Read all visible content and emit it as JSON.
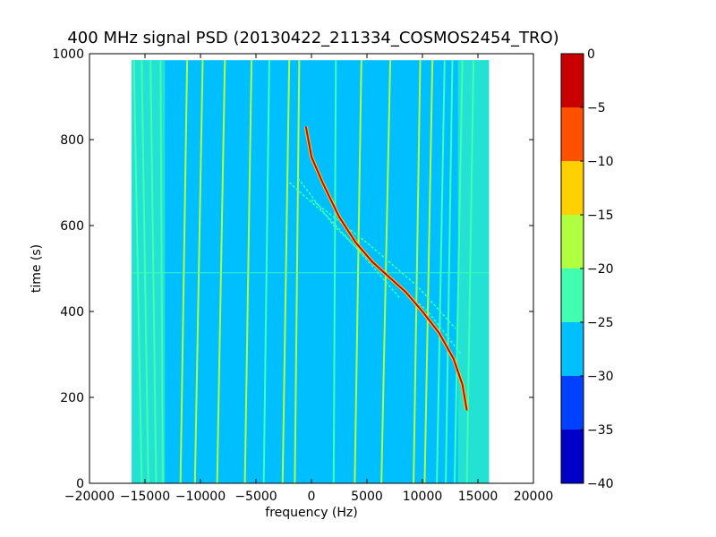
{
  "chart_data": {
    "type": "heatmap",
    "title": "400 MHz signal PSD (20130422_211334_COSMOS2454_TRO)",
    "xlabel": "frequency (Hz)",
    "ylabel": "time (s)",
    "xlim": [
      -20000,
      20000
    ],
    "ylim": [
      0,
      1000
    ],
    "xticks": [
      -20000,
      -15000,
      -10000,
      -5000,
      0,
      5000,
      10000,
      15000,
      20000
    ],
    "yticks": [
      0,
      200,
      400,
      600,
      800,
      1000
    ],
    "xtick_labels": [
      "−20000",
      "−15000",
      "−10000",
      "−5000",
      "0",
      "5000",
      "10000",
      "15000",
      "20000"
    ],
    "ytick_labels": [
      "0",
      "200",
      "400",
      "600",
      "800",
      "1000"
    ],
    "data_extent": {
      "x": [
        -16200,
        16000
      ],
      "y": [
        0,
        985
      ]
    },
    "background_level": -27.5,
    "edge_bands": [
      {
        "x": [
          -16200,
          -13200
        ],
        "level": -22.5
      },
      {
        "x": [
          13200,
          16000
        ],
        "level": -22.5
      }
    ],
    "colorbar": {
      "levels": [
        -40,
        -35,
        -30,
        -25,
        -20,
        -15,
        -10,
        -5,
        0
      ],
      "tick_labels": [
        "−40",
        "−35",
        "−30",
        "−25",
        "−20",
        "−15",
        "−10",
        "−5",
        "0"
      ],
      "colors": [
        "#0000c8",
        "#0040ff",
        "#00bfff",
        "#40ffb0",
        "#b0ff40",
        "#ffd000",
        "#ff5000",
        "#c80000"
      ]
    },
    "carrier_trace": {
      "name": "",
      "level": -2.5,
      "points": [
        [
          -500,
          830
        ],
        [
          0,
          760
        ],
        [
          1000,
          700
        ],
        [
          2500,
          620
        ],
        [
          4000,
          560
        ],
        [
          5500,
          515
        ],
        [
          7000,
          480
        ],
        [
          8500,
          445
        ],
        [
          10000,
          400
        ],
        [
          11500,
          350
        ],
        [
          12800,
          290
        ],
        [
          13600,
          230
        ],
        [
          14000,
          170
        ]
      ]
    },
    "faint_traces": [
      {
        "level": -22.5,
        "points": [
          [
            -1200,
            710
          ],
          [
            2000,
            600
          ],
          [
            6000,
            500
          ],
          [
            10500,
            400
          ],
          [
            13500,
            300
          ]
        ]
      },
      {
        "level": -22.5,
        "points": [
          [
            0,
            660
          ],
          [
            5000,
            560
          ],
          [
            9500,
            460
          ],
          [
            13000,
            360
          ]
        ]
      },
      {
        "level": -22.5,
        "points": [
          [
            -2000,
            700
          ],
          [
            1500,
            620
          ],
          [
            5000,
            520
          ],
          [
            8000,
            430
          ]
        ]
      }
    ],
    "vertical_lines": [
      {
        "x_top": -16000,
        "x_bottom": -15300,
        "level": -22.5
      },
      {
        "x_top": -15300,
        "x_bottom": -14700,
        "level": -22.5
      },
      {
        "x_top": -14500,
        "x_bottom": -14000,
        "level": -22.5
      },
      {
        "x_top": -13600,
        "x_bottom": -13400,
        "level": -22.5
      },
      {
        "x_top": -11200,
        "x_bottom": -11800,
        "level": -17.5
      },
      {
        "x_top": -9800,
        "x_bottom": -10500,
        "level": -17.5
      },
      {
        "x_top": -7800,
        "x_bottom": -8500,
        "level": -17.5
      },
      {
        "x_top": -5400,
        "x_bottom": -6000,
        "level": -17.5
      },
      {
        "x_top": -3800,
        "x_bottom": -4300,
        "level": -22.5
      },
      {
        "x_top": -2000,
        "x_bottom": -2600,
        "level": -17.5
      },
      {
        "x_top": -1100,
        "x_bottom": -1500,
        "level": -17.5
      },
      {
        "x_top": 2200,
        "x_bottom": 2000,
        "level": -22.5
      },
      {
        "x_top": 4500,
        "x_bottom": 3900,
        "level": -17.5
      },
      {
        "x_top": 7100,
        "x_bottom": 6300,
        "level": -17.5
      },
      {
        "x_top": 9800,
        "x_bottom": 9200,
        "level": -17.5
      },
      {
        "x_top": 10900,
        "x_bottom": 10200,
        "level": -17.5
      },
      {
        "x_top": 12000,
        "x_bottom": 11300,
        "level": -22.5
      },
      {
        "x_top": 12700,
        "x_bottom": 12100,
        "level": -22.5
      },
      {
        "x_top": 13600,
        "x_bottom": 12900,
        "level": -22.5
      },
      {
        "x_top": 14600,
        "x_bottom": 14000,
        "level": -22.5
      }
    ],
    "horizontal_line": {
      "y": 490,
      "level": -22.5
    },
    "grid": false,
    "legend": "none"
  }
}
